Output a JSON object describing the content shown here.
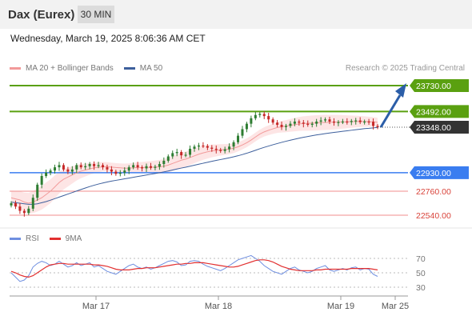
{
  "header": {
    "instrument": "Dax (Eurex)",
    "interval": "30 MIN",
    "datetime": "Wednesday, March 19, 2025 8:06:36 AM CET"
  },
  "legend": {
    "ma20_label": "MA 20 + Bollinger Bands",
    "ma50_label": "MA 50",
    "copyright": "Research © 2025 Trading Central"
  },
  "rsi_legend": {
    "rsi_label": "RSI",
    "ma9_label": "9MA"
  },
  "colors": {
    "up_candle": "#2e7d32",
    "down_candle": "#c62828",
    "resistance": "#5aa010",
    "support": "#3a7df0",
    "support_weak": "#f08c8c",
    "last_price_bg": "#333333",
    "arrow": "#2b5ea8",
    "band_fill": "#fde0e0",
    "ma20": "#f29a9a",
    "ma50": "#3d5f9c",
    "rsi": "#6f8fe0",
    "rsi_ma": "#e23030"
  },
  "chart_data": [
    {
      "type": "candlestick",
      "x_labels": [
        "Mar 17",
        "Mar 18",
        "Mar 19",
        "Mar 25"
      ],
      "ylim": [
        22470,
        23800
      ],
      "levels": [
        {
          "value": 23730.0,
          "label": "23730.00",
          "kind": "target"
        },
        {
          "value": 23492.0,
          "label": "23492.00",
          "kind": "resistance"
        },
        {
          "value": 23348.0,
          "label": "23348.00",
          "kind": "last"
        },
        {
          "value": 22930.0,
          "label": "22930.00",
          "kind": "pivot"
        },
        {
          "value": 22760.0,
          "label": "22760.00",
          "kind": "support"
        },
        {
          "value": 22540.0,
          "label": "22540.00",
          "kind": "support"
        }
      ],
      "close": [
        22650,
        22620,
        22580,
        22560,
        22600,
        22700,
        22820,
        22900,
        22930,
        22950,
        22980,
        23000,
        22960,
        22940,
        22960,
        23000,
        22980,
        22990,
        23010,
        22990,
        23000,
        22980,
        22960,
        22940,
        22920,
        22930,
        22950,
        22980,
        23000,
        22980,
        22970,
        22990,
        22975,
        22985,
        23010,
        23040,
        23080,
        23110,
        23120,
        23090,
        23095,
        23150,
        23170,
        23180,
        23175,
        23160,
        23150,
        23140,
        23130,
        23145,
        23170,
        23210,
        23270,
        23330,
        23380,
        23430,
        23460,
        23470,
        23450,
        23420,
        23390,
        23370,
        23350,
        23360,
        23380,
        23400,
        23390,
        23380,
        23370,
        23380,
        23400,
        23410,
        23420,
        23400,
        23390,
        23395,
        23400,
        23395,
        23405,
        23410,
        23395,
        23400,
        23398,
        23360,
        23348
      ],
      "ma20": [
        22700,
        22690,
        22680,
        22660,
        22650,
        22660,
        22680,
        22700,
        22730,
        22760,
        22800,
        22840,
        22870,
        22890,
        22910,
        22930,
        22945,
        22955,
        22965,
        22975,
        22980,
        22985,
        22985,
        22982,
        22978,
        22975,
        22972,
        22972,
        22975,
        22978,
        22978,
        22979,
        22980,
        22982,
        22984,
        22990,
        23000,
        23015,
        23030,
        23045,
        23055,
        23070,
        23085,
        23100,
        23112,
        23122,
        23130,
        23135,
        23140,
        23143,
        23148,
        23155,
        23168,
        23185,
        23205,
        23230,
        23258,
        23285,
        23305,
        23320,
        23333,
        23345,
        23352,
        23358,
        23365,
        23372,
        23378,
        23382,
        23384,
        23386,
        23388,
        23390,
        23392,
        23393,
        23394,
        23396,
        23397,
        23398,
        23399,
        23400,
        23400,
        23400,
        23399,
        23397,
        23393
      ],
      "ma50": [
        22660,
        22655,
        22650,
        22645,
        22640,
        22640,
        22645,
        22655,
        22665,
        22678,
        22692,
        22706,
        22720,
        22734,
        22748,
        22762,
        22776,
        22790,
        22803,
        22815,
        22826,
        22836,
        22845,
        22853,
        22860,
        22867,
        22874,
        22881,
        22888,
        22895,
        22902,
        22909,
        22916,
        22923,
        22930,
        22938,
        22946,
        22955,
        22964,
        22973,
        22981,
        22990,
        22999,
        23008,
        23017,
        23026,
        23035,
        23043,
        23051,
        23059,
        23067,
        23076,
        23086,
        23097,
        23109,
        23122,
        23136,
        23150,
        23163,
        23175,
        23187,
        23198,
        23209,
        23219,
        23229,
        23238,
        23247,
        23255,
        23263,
        23270,
        23277,
        23283,
        23289,
        23295,
        23300,
        23305,
        23310,
        23315,
        23320,
        23325,
        23330,
        23335,
        23338,
        23342,
        23346
      ]
    },
    {
      "type": "line",
      "name": "RSI",
      "y_ticks": [
        70,
        50,
        30
      ],
      "ylim": [
        20,
        80
      ],
      "rsi": [
        50,
        44,
        38,
        40,
        46,
        58,
        63,
        66,
        64,
        60,
        62,
        66,
        62,
        58,
        60,
        64,
        60,
        62,
        64,
        58,
        60,
        56,
        52,
        50,
        48,
        52,
        56,
        60,
        62,
        58,
        56,
        58,
        55,
        57,
        60,
        63,
        66,
        67,
        65,
        60,
        61,
        66,
        67,
        66,
        62,
        59,
        57,
        55,
        53,
        56,
        60,
        64,
        68,
        70,
        72,
        74,
        70,
        66,
        60,
        56,
        52,
        50,
        48,
        52,
        56,
        58,
        54,
        52,
        50,
        52,
        56,
        58,
        60,
        54,
        52,
        54,
        56,
        54,
        57,
        58,
        54,
        56,
        55,
        48,
        45
      ],
      "ma9": [
        52,
        50,
        47,
        45,
        44,
        46,
        50,
        54,
        58,
        61,
        62,
        63,
        63,
        62,
        62,
        62,
        62,
        62,
        62,
        61,
        61,
        60,
        59,
        57,
        55,
        54,
        54,
        54,
        55,
        56,
        56,
        57,
        57,
        57,
        58,
        59,
        60,
        61,
        62,
        62,
        63,
        63,
        64,
        64,
        64,
        63,
        62,
        61,
        60,
        59,
        58,
        58,
        59,
        61,
        63,
        65,
        67,
        68,
        68,
        67,
        65,
        62,
        59,
        57,
        55,
        54,
        53,
        53,
        53,
        53,
        54,
        54,
        55,
        55,
        55,
        55,
        55,
        55,
        56,
        56,
        56,
        56,
        56,
        55,
        54
      ]
    }
  ]
}
